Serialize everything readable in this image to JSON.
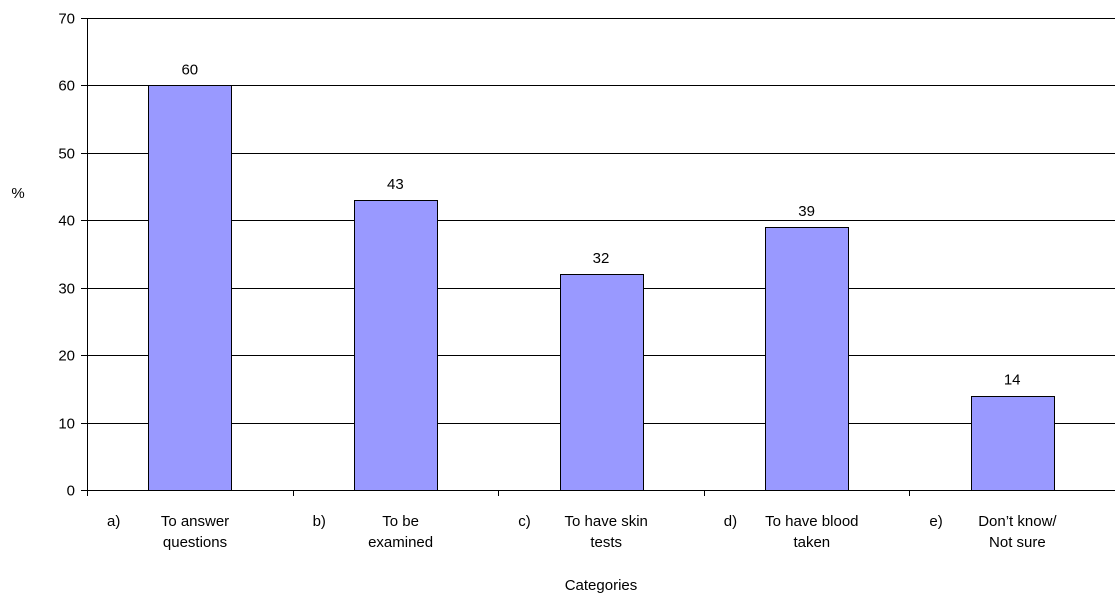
{
  "chart_data": {
    "type": "bar",
    "categories": [
      {
        "letter": "a)",
        "lines": [
          "To answer",
          "questions"
        ]
      },
      {
        "letter": "b)",
        "lines": [
          "To be",
          "examined"
        ]
      },
      {
        "letter": "c)",
        "lines": [
          "To have skin",
          "tests"
        ]
      },
      {
        "letter": "d)",
        "lines": [
          "To have blood",
          "taken"
        ]
      },
      {
        "letter": "e)",
        "lines": [
          "Don’t know/",
          "Not sure"
        ]
      }
    ],
    "values": [
      60,
      43,
      32,
      39,
      14
    ],
    "data_labels": [
      "60",
      "43",
      "32",
      "39",
      "14"
    ],
    "yticks": [
      "0",
      "10",
      "20",
      "30",
      "40",
      "50",
      "60",
      "70"
    ],
    "ylim": [
      0,
      70
    ],
    "ylabel": "%",
    "xlabel": "Categories",
    "title": "",
    "grid": true,
    "legend": "none",
    "colors": {
      "bar": "#9999FF",
      "outline": "#000000",
      "grid": "#000000"
    }
  }
}
